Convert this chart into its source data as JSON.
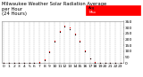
{
  "title": "Milwaukee Weather Solar Radiation Average\nper Hour\n(24 Hours)",
  "background_color": "#ffffff",
  "plot_bg_color": "#ffffff",
  "grid_color": "#aaaaaa",
  "x_values": [
    0,
    1,
    2,
    3,
    4,
    5,
    6,
    7,
    8,
    9,
    10,
    11,
    12,
    13,
    14,
    15,
    16,
    17,
    18,
    19,
    20,
    21,
    22,
    23
  ],
  "y_black": [
    0,
    0,
    0,
    0,
    0,
    0,
    0,
    4,
    28,
    92,
    178,
    262,
    308,
    288,
    238,
    178,
    102,
    38,
    4,
    0,
    0,
    0,
    0,
    0
  ],
  "y_red": [
    0,
    0,
    0,
    0,
    0,
    0,
    1,
    7,
    33,
    98,
    188,
    272,
    318,
    298,
    248,
    188,
    108,
    43,
    7,
    1,
    0,
    0,
    0,
    0
  ],
  "ylim": [
    0,
    350
  ],
  "xlim": [
    -0.5,
    23.5
  ],
  "ytick_labels": [
    "350",
    "300",
    "250",
    "200",
    "150",
    "100",
    "50",
    "0"
  ],
  "ytick_values": [
    350,
    300,
    250,
    200,
    150,
    100,
    50,
    0
  ],
  "legend_label_black": "Avg",
  "legend_label_red": "Max",
  "title_fontsize": 3.8,
  "tick_fontsize": 3.2
}
